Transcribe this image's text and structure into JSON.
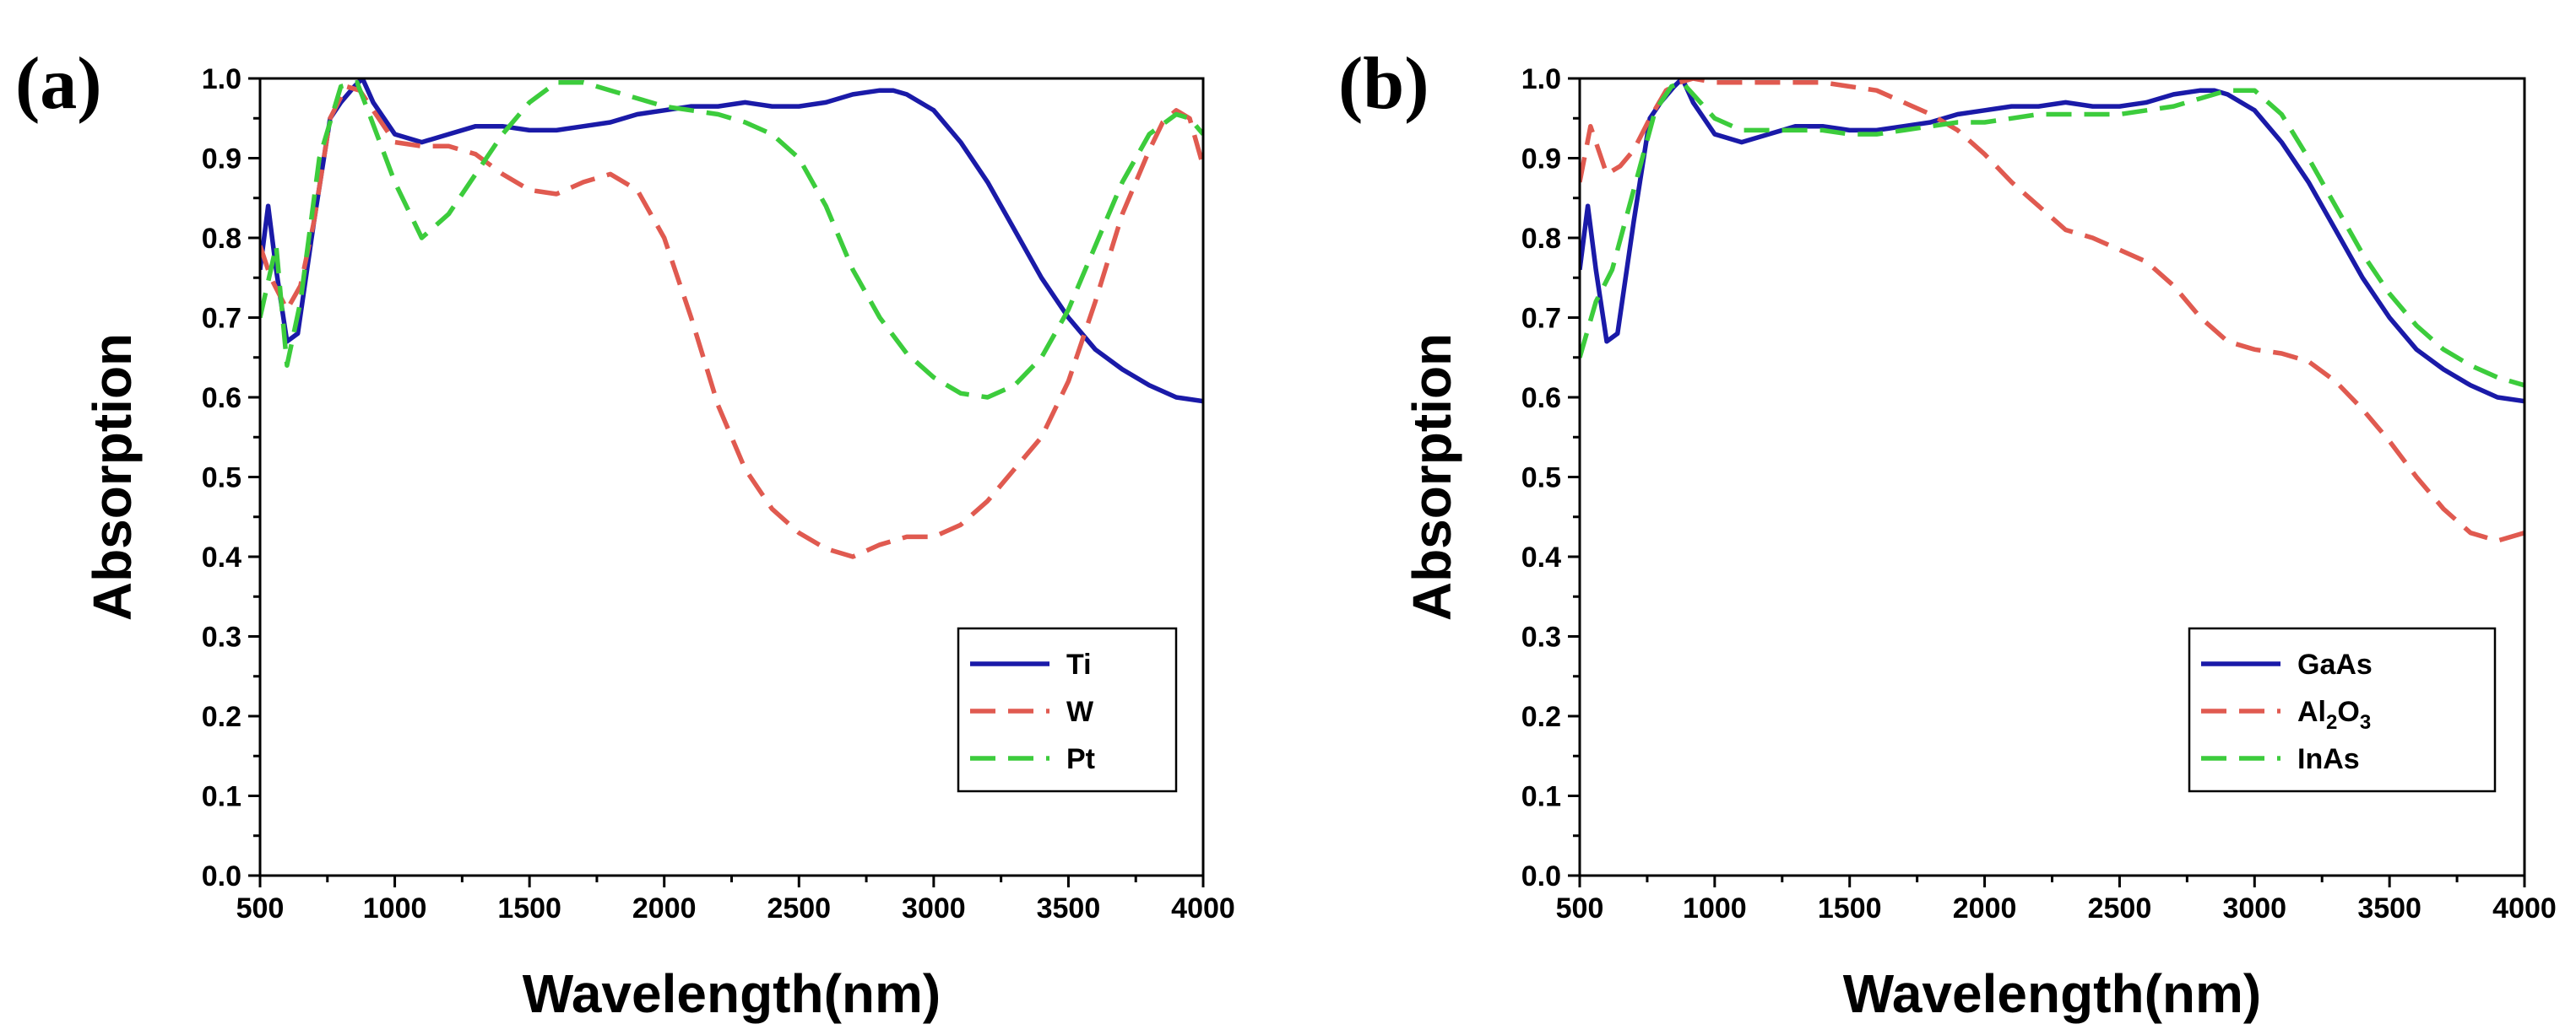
{
  "chart_data": [
    {
      "type": "line",
      "panel_label": "(a)",
      "xlabel": "Wavelength(nm)",
      "ylabel": "Absorption",
      "xlim": [
        500,
        4000
      ],
      "ylim": [
        0.0,
        1.0
      ],
      "xticks": [
        500,
        1000,
        1500,
        2000,
        2500,
        3000,
        3500,
        4000
      ],
      "yticks": [
        0.0,
        0.1,
        0.2,
        0.3,
        0.4,
        0.5,
        0.6,
        0.7,
        0.8,
        0.9,
        1.0
      ],
      "legend_position": "bottom-right",
      "series": [
        {
          "name": "Ti",
          "color": "#1a1aa8",
          "dash": "solid",
          "x": [
            500,
            530,
            560,
            600,
            640,
            700,
            760,
            800,
            850,
            880,
            920,
            1000,
            1100,
            1200,
            1300,
            1400,
            1500,
            1600,
            1700,
            1800,
            1900,
            2000,
            2100,
            2200,
            2300,
            2400,
            2500,
            2600,
            2700,
            2800,
            2850,
            2900,
            3000,
            3100,
            3200,
            3300,
            3400,
            3500,
            3600,
            3700,
            3800,
            3900,
            4000
          ],
          "y": [
            0.76,
            0.84,
            0.76,
            0.67,
            0.68,
            0.82,
            0.95,
            0.97,
            0.99,
            1.0,
            0.97,
            0.93,
            0.92,
            0.93,
            0.94,
            0.94,
            0.935,
            0.935,
            0.94,
            0.945,
            0.955,
            0.96,
            0.965,
            0.965,
            0.97,
            0.965,
            0.965,
            0.97,
            0.98,
            0.985,
            0.985,
            0.98,
            0.96,
            0.92,
            0.87,
            0.81,
            0.75,
            0.7,
            0.66,
            0.635,
            0.615,
            0.6,
            0.595
          ]
        },
        {
          "name": "W",
          "color": "#e05a50",
          "dash": "dashed",
          "x": [
            500,
            540,
            600,
            650,
            700,
            760,
            820,
            870,
            920,
            1000,
            1100,
            1200,
            1300,
            1400,
            1500,
            1600,
            1700,
            1800,
            1900,
            2000,
            2100,
            2200,
            2300,
            2400,
            2500,
            2600,
            2700,
            2800,
            2900,
            3000,
            3100,
            3200,
            3300,
            3400,
            3500,
            3600,
            3700,
            3800,
            3850,
            3900,
            3950,
            4000
          ],
          "y": [
            0.79,
            0.75,
            0.71,
            0.74,
            0.82,
            0.95,
            0.99,
            0.985,
            0.96,
            0.92,
            0.915,
            0.915,
            0.905,
            0.88,
            0.86,
            0.855,
            0.87,
            0.88,
            0.86,
            0.8,
            0.7,
            0.59,
            0.51,
            0.46,
            0.43,
            0.41,
            0.4,
            0.415,
            0.425,
            0.425,
            0.44,
            0.47,
            0.51,
            0.55,
            0.62,
            0.72,
            0.83,
            0.91,
            0.945,
            0.96,
            0.95,
            0.89
          ]
        },
        {
          "name": "Pt",
          "color": "#3ccc3c",
          "dash": "dashed",
          "x": [
            500,
            560,
            600,
            650,
            720,
            800,
            860,
            900,
            1000,
            1100,
            1200,
            1300,
            1400,
            1500,
            1600,
            1700,
            1800,
            1900,
            2000,
            2100,
            2200,
            2300,
            2400,
            2500,
            2600,
            2700,
            2800,
            2900,
            3000,
            3100,
            3200,
            3300,
            3400,
            3500,
            3600,
            3700,
            3800,
            3900,
            3950,
            4000
          ],
          "y": [
            0.7,
            0.79,
            0.64,
            0.72,
            0.9,
            0.99,
            0.995,
            0.96,
            0.87,
            0.8,
            0.83,
            0.88,
            0.93,
            0.97,
            0.995,
            0.995,
            0.985,
            0.975,
            0.965,
            0.96,
            0.955,
            0.945,
            0.93,
            0.9,
            0.84,
            0.76,
            0.7,
            0.655,
            0.625,
            0.605,
            0.6,
            0.615,
            0.65,
            0.71,
            0.79,
            0.87,
            0.93,
            0.955,
            0.95,
            0.93
          ]
        }
      ]
    },
    {
      "type": "line",
      "panel_label": "(b)",
      "xlabel": "Wavelength(nm)",
      "ylabel": "Absorption",
      "xlim": [
        500,
        4000
      ],
      "ylim": [
        0.0,
        1.0
      ],
      "xticks": [
        500,
        1000,
        1500,
        2000,
        2500,
        3000,
        3500,
        4000
      ],
      "yticks": [
        0.0,
        0.1,
        0.2,
        0.3,
        0.4,
        0.5,
        0.6,
        0.7,
        0.8,
        0.9,
        1.0
      ],
      "legend_position": "bottom-right",
      "series": [
        {
          "name": "GaAs",
          "name_main": "GaAs",
          "color": "#1a1aa8",
          "dash": "solid",
          "x": [
            500,
            530,
            560,
            600,
            640,
            700,
            760,
            800,
            850,
            880,
            920,
            1000,
            1100,
            1200,
            1300,
            1400,
            1500,
            1600,
            1700,
            1800,
            1900,
            2000,
            2100,
            2200,
            2300,
            2400,
            2500,
            2600,
            2700,
            2800,
            2850,
            2900,
            3000,
            3100,
            3200,
            3300,
            3400,
            3500,
            3600,
            3700,
            3800,
            3900,
            4000
          ],
          "y": [
            0.76,
            0.84,
            0.76,
            0.67,
            0.68,
            0.82,
            0.95,
            0.97,
            0.99,
            1.0,
            0.97,
            0.93,
            0.92,
            0.93,
            0.94,
            0.94,
            0.935,
            0.935,
            0.94,
            0.945,
            0.955,
            0.96,
            0.965,
            0.965,
            0.97,
            0.965,
            0.965,
            0.97,
            0.98,
            0.985,
            0.985,
            0.98,
            0.96,
            0.92,
            0.87,
            0.81,
            0.75,
            0.7,
            0.66,
            0.635,
            0.615,
            0.6,
            0.595
          ]
        },
        {
          "name": "Al2O3",
          "name_main": "Al",
          "name_sub1": "2",
          "name_mid": "O",
          "name_sub2": "3",
          "color": "#e05a50",
          "dash": "dashed",
          "x": [
            500,
            540,
            600,
            650,
            700,
            760,
            820,
            870,
            920,
            1000,
            1100,
            1200,
            1300,
            1400,
            1500,
            1600,
            1700,
            1800,
            1900,
            2000,
            2100,
            2200,
            2300,
            2400,
            2500,
            2600,
            2700,
            2800,
            2900,
            3000,
            3100,
            3200,
            3300,
            3400,
            3500,
            3600,
            3700,
            3800,
            3900,
            4000
          ],
          "y": [
            0.87,
            0.94,
            0.88,
            0.89,
            0.91,
            0.95,
            0.985,
            0.995,
            1.0,
            0.995,
            0.995,
            0.995,
            0.995,
            0.995,
            0.99,
            0.985,
            0.97,
            0.955,
            0.935,
            0.905,
            0.87,
            0.84,
            0.81,
            0.8,
            0.785,
            0.77,
            0.74,
            0.7,
            0.67,
            0.66,
            0.655,
            0.645,
            0.62,
            0.585,
            0.545,
            0.5,
            0.46,
            0.43,
            0.42,
            0.43
          ]
        },
        {
          "name": "InAs",
          "name_main": "InAs",
          "color": "#3ccc3c",
          "dash": "dashed",
          "x": [
            500,
            560,
            620,
            700,
            780,
            840,
            880,
            920,
            1000,
            1100,
            1200,
            1300,
            1400,
            1500,
            1600,
            1700,
            1800,
            1900,
            2000,
            2100,
            2200,
            2300,
            2400,
            2500,
            2600,
            2700,
            2800,
            2900,
            3000,
            3100,
            3200,
            3300,
            3400,
            3500,
            3600,
            3700,
            3800,
            3900,
            4000
          ],
          "y": [
            0.65,
            0.72,
            0.76,
            0.86,
            0.96,
            0.99,
            0.995,
            0.98,
            0.95,
            0.935,
            0.935,
            0.935,
            0.935,
            0.93,
            0.93,
            0.935,
            0.94,
            0.945,
            0.945,
            0.95,
            0.955,
            0.955,
            0.955,
            0.955,
            0.96,
            0.965,
            0.975,
            0.985,
            0.985,
            0.955,
            0.9,
            0.84,
            0.78,
            0.73,
            0.69,
            0.66,
            0.64,
            0.625,
            0.615
          ]
        }
      ]
    }
  ]
}
